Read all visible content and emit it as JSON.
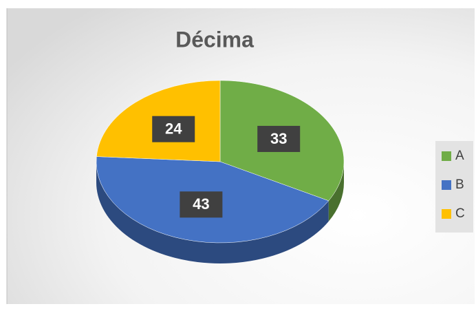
{
  "chart_data": {
    "type": "pie3d",
    "title": "Décima",
    "categories": [
      "A",
      "B",
      "C"
    ],
    "values": [
      33,
      43,
      24
    ],
    "colors": [
      "#70ad47",
      "#4472c4",
      "#ffc000"
    ],
    "legend": "right"
  }
}
